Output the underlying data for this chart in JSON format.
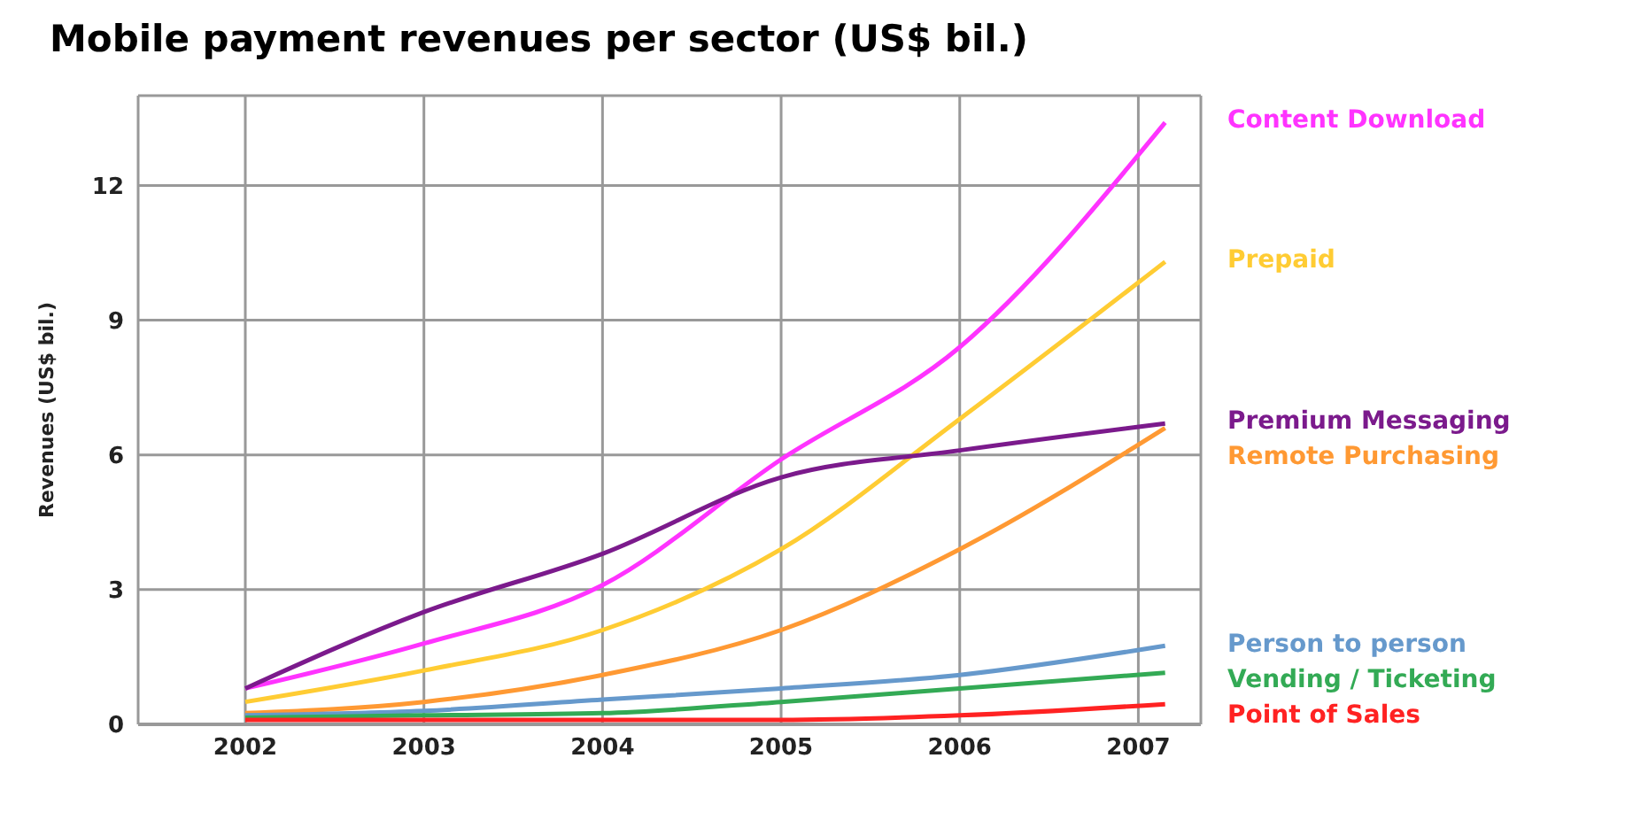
{
  "chart_data": {
    "type": "line",
    "title": "Mobile payment revenues per sector (US$ bil.)",
    "ylabel": "Revenues (US$ bil.)",
    "x": [
      2002,
      2003,
      2004,
      2005,
      2006,
      2007.15
    ],
    "xlim": [
      2001.4,
      2007.35
    ],
    "xticks": [
      2002,
      2003,
      2004,
      2005,
      2006,
      2007
    ],
    "ylim": [
      0,
      14
    ],
    "yticks": [
      0,
      3,
      6,
      9,
      12
    ],
    "grid": true,
    "marker": "none",
    "line_style": "solid",
    "series": [
      {
        "name": "Content Download",
        "color": "#ff33ff",
        "values": [
          0.8,
          1.8,
          3.1,
          5.9,
          8.4,
          13.4
        ]
      },
      {
        "name": "Prepaid",
        "color": "#ffcc33",
        "values": [
          0.5,
          1.2,
          2.1,
          3.9,
          6.8,
          10.3
        ]
      },
      {
        "name": "Premium Messaging",
        "color": "#7b1a8c",
        "values": [
          0.8,
          2.5,
          3.8,
          5.5,
          6.1,
          6.7
        ]
      },
      {
        "name": "Remote Purchasing",
        "color": "#ff9933",
        "values": [
          0.25,
          0.5,
          1.1,
          2.1,
          3.9,
          6.6
        ]
      },
      {
        "name": "Person to person",
        "color": "#6699cc",
        "values": [
          0.2,
          0.3,
          0.55,
          0.8,
          1.1,
          1.75
        ]
      },
      {
        "name": "Vending / Ticketing",
        "color": "#33aa55",
        "values": [
          0.15,
          0.2,
          0.25,
          0.5,
          0.8,
          1.15
        ]
      },
      {
        "name": "Point of Sales",
        "color": "#ff2222",
        "values": [
          0.1,
          0.1,
          0.1,
          0.1,
          0.2,
          0.45
        ]
      }
    ]
  }
}
